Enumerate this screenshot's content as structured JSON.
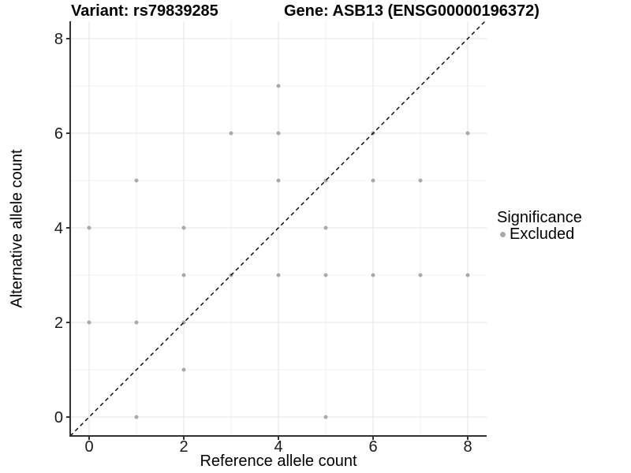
{
  "chart_data": {
    "type": "scatter",
    "titles": {
      "left": "Variant: rs79839285",
      "right": "Gene: ASB13 (ENSG00000196372)"
    },
    "xlabel": "Reference allele count",
    "ylabel": "Alternative allele count",
    "xlim": [
      -0.4,
      8.4
    ],
    "ylim": [
      -0.4,
      8.4
    ],
    "x_ticks": [
      0,
      2,
      4,
      6,
      8
    ],
    "y_ticks": [
      0,
      2,
      4,
      6,
      8
    ],
    "x_minor_ticks": [
      1,
      3,
      5,
      7
    ],
    "y_minor_ticks": [
      1,
      3,
      5,
      7
    ],
    "grid": "major+minor",
    "legend": {
      "position": "right",
      "title": "Significance",
      "items": [
        {
          "label": "Excluded",
          "color": "#a9a9a9"
        }
      ]
    },
    "series": [
      {
        "name": "Excluded",
        "marker": "circle",
        "color": "#a9a9a9",
        "points": [
          [
            0,
            2
          ],
          [
            0,
            4
          ],
          [
            1,
            0
          ],
          [
            1,
            2
          ],
          [
            1,
            5
          ],
          [
            2,
            1
          ],
          [
            2,
            2
          ],
          [
            2,
            3
          ],
          [
            2,
            4
          ],
          [
            3,
            3
          ],
          [
            3,
            6
          ],
          [
            4,
            3
          ],
          [
            4,
            5
          ],
          [
            4,
            6
          ],
          [
            4,
            7
          ],
          [
            5,
            0
          ],
          [
            5,
            3
          ],
          [
            5,
            4
          ],
          [
            5,
            5
          ],
          [
            6,
            3
          ],
          [
            6,
            5
          ],
          [
            6,
            6
          ],
          [
            7,
            3
          ],
          [
            7,
            5
          ],
          [
            8,
            3
          ],
          [
            8,
            6
          ]
        ]
      }
    ],
    "reference_line": {
      "kind": "y=x",
      "style": "dashed",
      "color": "#000000"
    }
  },
  "colors": {
    "background": "#ffffff",
    "grid_major": "#e3e3e3",
    "grid_minor": "#f1f1f1",
    "axis": "#333333",
    "tick_text": "#1a1a1a",
    "point": "#a9a9a9",
    "ref_line": "#000000"
  }
}
